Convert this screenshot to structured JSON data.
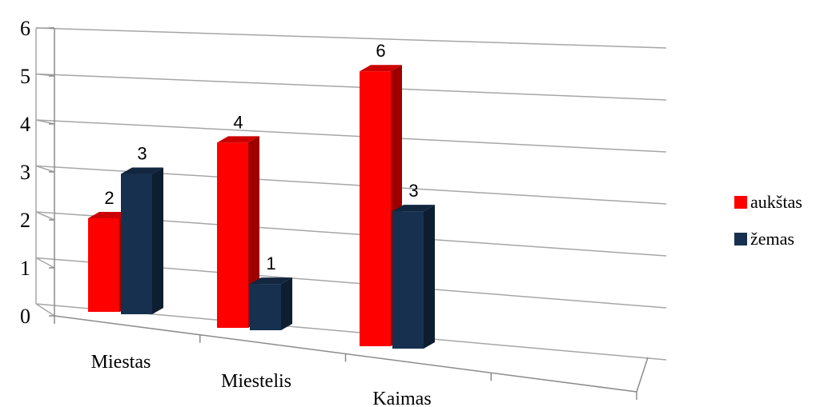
{
  "chart_data": {
    "type": "bar",
    "style": "3d-clustered-column",
    "title": "",
    "xlabel": "",
    "ylabel": "",
    "categories": [
      "Miestas",
      "Miestelis",
      "Kaimas"
    ],
    "series": [
      {
        "name": "aukštas",
        "values": [
          2,
          4,
          6
        ],
        "color": "#ff0000"
      },
      {
        "name": "žemas",
        "values": [
          3,
          1,
          3
        ],
        "color": "#17304f"
      }
    ],
    "ylim": [
      0,
      6
    ],
    "yticks": [
      "0",
      "1",
      "2",
      "3",
      "4",
      "5",
      "6"
    ],
    "grid": true,
    "legend": "right"
  }
}
